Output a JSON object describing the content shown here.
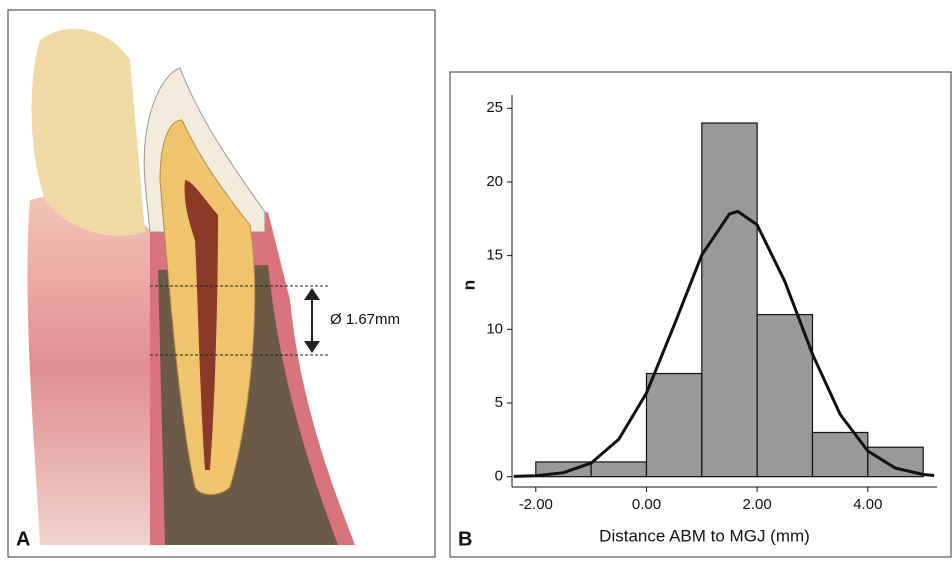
{
  "panel_a": {
    "label": "A",
    "measurement": "Ø 1.67mm"
  },
  "panel_b_label": "B",
  "chart_data": {
    "type": "histogram",
    "x_label": "Distance ABM to MGJ (mm)",
    "y_label": "n",
    "bins": [
      -2,
      -1,
      0,
      1,
      2,
      3,
      4,
      5
    ],
    "counts": [
      1,
      1,
      7,
      24,
      11,
      3,
      2
    ],
    "color": "#999999",
    "xlim": [
      -2.43,
      5.25
    ],
    "ylim": [
      -0.7,
      25.9
    ],
    "xticks": [
      {
        "value": -2,
        "label": "-2.00"
      },
      {
        "value": 0,
        "label": "0.00"
      },
      {
        "value": 2,
        "label": "2.00"
      },
      {
        "value": 4,
        "label": "4.00"
      }
    ],
    "yticks": [
      0,
      5,
      10,
      15,
      20,
      25
    ],
    "curve": {
      "color": "#111111",
      "x": [
        -2.4,
        -2,
        -1.5,
        -1,
        -0.5,
        0,
        0.5,
        1,
        1.5,
        1.65,
        2,
        2.5,
        3,
        3.5,
        4,
        4.5,
        5,
        5.2
      ],
      "values": [
        0.02,
        0.06,
        0.27,
        0.92,
        2.54,
        5.68,
        10.27,
        15.05,
        17.83,
        18,
        17.09,
        13.25,
        8.31,
        4.22,
        1.74,
        0.58,
        0.15,
        0.08
      ]
    }
  }
}
